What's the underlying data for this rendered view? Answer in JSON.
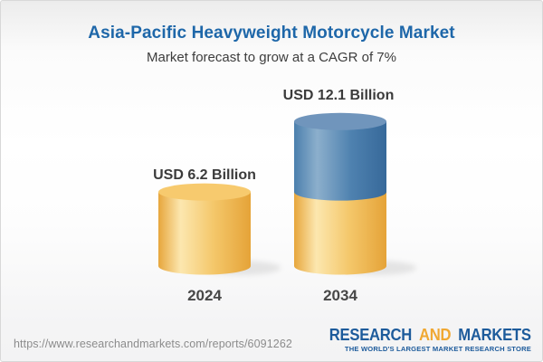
{
  "header": {
    "title": "Asia-Pacific Heavyweight Motorcycle Market",
    "subtitle": "Market forecast to grow at a CAGR of 7%"
  },
  "chart_data": {
    "type": "bar",
    "subtype": "3d-cylinder",
    "title": "Asia-Pacific Heavyweight Motorcycle Market",
    "subtitle": "Market forecast to grow at a CAGR of 7%",
    "unit": "USD Billion",
    "categories": [
      "2024",
      "2034"
    ],
    "values": [
      6.2,
      12.1
    ],
    "bar_labels": [
      "USD 6.2 Billion",
      "USD 12.1 Billion"
    ],
    "cagr_percent": 7,
    "growth_segment": {
      "category": "2034",
      "base_value": 6.2,
      "growth_value": 5.9
    },
    "colors": {
      "base_body_edge": "#e7a63c",
      "base_body_highlight": "#fce7af",
      "base_body_mid": "#f4c76a",
      "base_body_dark": "#e5a338",
      "base_top": "#f7ca6e",
      "growth_body_edge": "#4b7fad",
      "growth_body_highlight": "#8cafcc",
      "growth_body_mid": "#4e81af",
      "growth_body_dark": "#37699a",
      "growth_top": "#7095bc",
      "label_text": "#3b3b3b"
    },
    "legend": "none",
    "axes": "none",
    "grid": false
  },
  "footer": {
    "url": "https://www.researchandmarkets.com/reports/6091262",
    "logo": {
      "word1": "RESEARCH",
      "word2": "AND",
      "word3": "MARKETS",
      "tagline": "THE WORLD'S LARGEST MARKET RESEARCH STORE",
      "blue": "#1d5b9b",
      "gold": "#f0a832"
    }
  }
}
